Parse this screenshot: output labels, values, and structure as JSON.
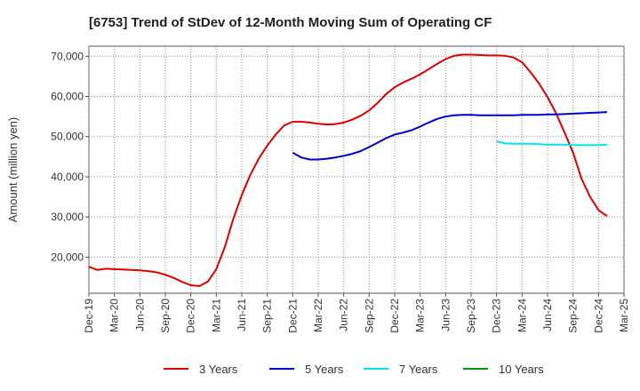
{
  "chart_data": {
    "type": "line",
    "title": "[6753]  Trend of StDev of 12-Month Moving Sum of Operating CF",
    "xlabel": "",
    "ylabel": "Amount (million yen)",
    "ylim": [
      11000,
      72500
    ],
    "yticks": [
      20000,
      30000,
      40000,
      50000,
      60000,
      70000
    ],
    "ytick_labels": [
      "20,000",
      "30,000",
      "40,000",
      "50,000",
      "60,000",
      "70,000"
    ],
    "x_tick_labels": [
      "Dec-19",
      "Mar-20",
      "Jun-20",
      "Sep-20",
      "Dec-20",
      "Mar-21",
      "Jun-21",
      "Sep-21",
      "Dec-21",
      "Mar-22",
      "Jun-22",
      "Sep-22",
      "Dec-22",
      "Mar-23",
      "Jun-23",
      "Sep-23",
      "Dec-23",
      "Mar-24",
      "Jun-24",
      "Sep-24",
      "Dec-24",
      "Mar-25"
    ],
    "grid": true,
    "legend_position": "bottom",
    "series": [
      {
        "name": "3 Years",
        "color": "#dd0000",
        "start_month_index": 0,
        "values": [
          17600,
          16800,
          17100,
          17000,
          16900,
          16800,
          16700,
          16500,
          16200,
          15600,
          14800,
          13800,
          13000,
          12800,
          13900,
          17000,
          22500,
          29500,
          35500,
          40500,
          44500,
          47800,
          50500,
          52800,
          53700,
          53700,
          53500,
          53200,
          53000,
          53100,
          53500,
          54200,
          55200,
          56500,
          58400,
          60600,
          62300,
          63500,
          64400,
          65500,
          66800,
          68100,
          69300,
          70100,
          70400,
          70400,
          70300,
          70200,
          70200,
          70100,
          69700,
          68500,
          66000,
          63200,
          59800,
          55800,
          51000,
          46000,
          39500,
          35000,
          31700,
          30200
        ]
      },
      {
        "name": "5 Years",
        "color": "#0000cc",
        "start_month_index": 24,
        "values": [
          46000,
          44800,
          44300,
          44300,
          44500,
          44800,
          45200,
          45700,
          46400,
          47400,
          48500,
          49600,
          50500,
          51000,
          51600,
          52500,
          53500,
          54400,
          55000,
          55300,
          55400,
          55400,
          55300,
          55300,
          55300,
          55300,
          55300,
          55400,
          55400,
          55400,
          55500,
          55500,
          55600,
          55700,
          55800,
          55900,
          56000,
          56100
        ]
      },
      {
        "name": "7 Years",
        "color": "#00e5e5",
        "start_month_index": 48,
        "values": [
          48800,
          48300,
          48200,
          48200,
          48200,
          48100,
          48000,
          48000,
          48000,
          47900,
          47900,
          47900,
          47900,
          48000
        ]
      },
      {
        "name": "10 Years",
        "color": "#009900",
        "start_month_index": 0,
        "values": []
      }
    ]
  }
}
